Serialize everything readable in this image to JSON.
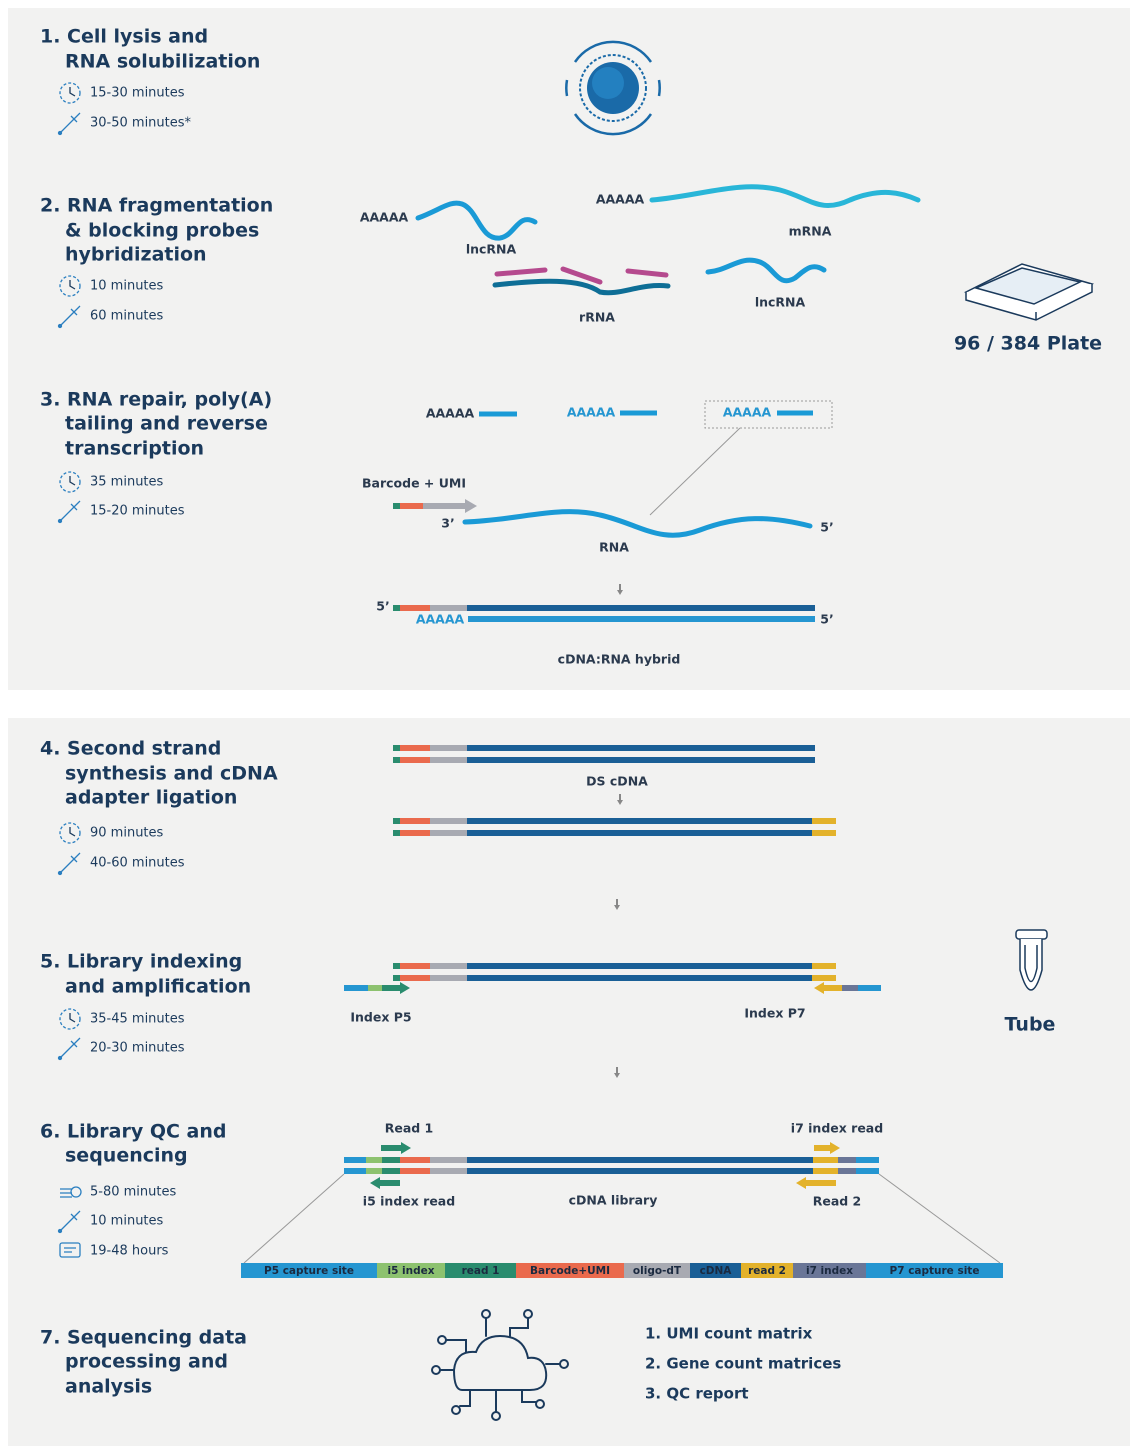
{
  "steps": [
    {
      "title_lines": [
        "1. Cell lysis and",
        "RNA solubilization"
      ],
      "times": [
        "15-30 minutes",
        "30-50 minutes*"
      ]
    },
    {
      "title_lines": [
        "2. RNA fragmentation",
        "& blocking probes",
        "hybridization"
      ],
      "times": [
        "10 minutes",
        "60 minutes"
      ]
    },
    {
      "title_lines": [
        "3. RNA repair, poly(A)",
        "tailing and reverse",
        "transcription"
      ],
      "times": [
        "35 minutes",
        "15-20 minutes"
      ]
    },
    {
      "title_lines": [
        "4. Second strand",
        "synthesis and cDNA",
        "adapter ligation"
      ],
      "times": [
        "90 minutes",
        "40-60 minutes"
      ]
    },
    {
      "title_lines": [
        "5. Library indexing",
        "and amplification"
      ],
      "times": [
        "35-45 minutes",
        "20-30 minutes"
      ]
    },
    {
      "title_lines": [
        "6. Library QC and",
        "sequencing"
      ],
      "times": [
        "5-80 minutes",
        "10 minutes",
        "19-48 hours"
      ]
    },
    {
      "title_lines": [
        "7. Sequencing data",
        "processing and",
        "analysis"
      ],
      "times": []
    }
  ],
  "fragmentation": {
    "polya_1": "AAAAA",
    "lncrna_1": "lncRNA",
    "polya_2": "AAAAA",
    "mrna": "mRNA",
    "rrna": "rRNA",
    "lncrna_2": "lncRNA"
  },
  "plate": "96 / 384 Plate",
  "repair": {
    "polya": [
      "AAAAA",
      "AAAAA",
      "AAAAA"
    ],
    "barcode": "Barcode + UMI",
    "rna_3": "3’",
    "rna_5": "5’",
    "rna": "RNA",
    "hybrid_5_top": "5’",
    "hybrid_polya": "AAAAA",
    "hybrid_5_bottom": "5’",
    "hybrid": "cDNA:RNA hybrid"
  },
  "second_strand": {
    "ds": "DS cDNA"
  },
  "indexing": {
    "p5": "Index P5",
    "p7": "Index P7"
  },
  "tube": "Tube",
  "sequencing": {
    "read1": "Read 1",
    "i7_read": "i7 index read",
    "i5_read": "i5 index read",
    "library": "cDNA library",
    "read2": "Read 2",
    "segments": [
      "P5 capture site",
      "i5 index",
      "read 1",
      "Barcode+UMI",
      "oligo-dT",
      "cDNA",
      "read 2",
      "i7 index",
      "P7 capture site"
    ]
  },
  "outputs": [
    "1. UMI count matrix",
    "2. Gene count matrices",
    "3. QC report"
  ]
}
